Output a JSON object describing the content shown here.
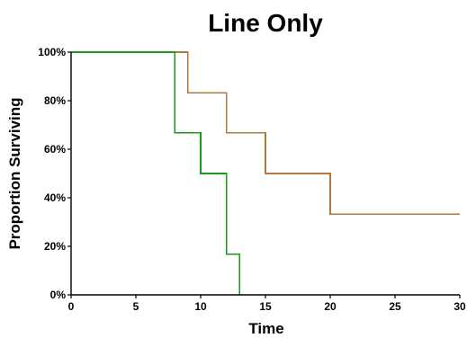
{
  "chart_data": {
    "type": "line",
    "step": true,
    "title": "Line Only",
    "xlabel": "Time",
    "ylabel": "Proportion Surviving",
    "xlim": [
      0,
      30
    ],
    "ylim": [
      0,
      1
    ],
    "x_ticks": [
      0,
      5,
      10,
      15,
      20,
      25,
      30
    ],
    "x_tick_labels": [
      "0",
      "5",
      "10",
      "15",
      "20",
      "25",
      "30"
    ],
    "y_ticks": [
      0,
      0.2,
      0.4,
      0.6,
      0.8,
      1.0
    ],
    "y_tick_labels": [
      "0%",
      "20%",
      "40%",
      "60%",
      "80%",
      "100%"
    ],
    "grid": false,
    "legend": "none",
    "series": [
      {
        "color": "#b07a3c",
        "x": [
          0,
          9,
          12,
          15,
          20,
          30
        ],
        "y": [
          1.0,
          0.833,
          0.667,
          0.5,
          0.333,
          0.333
        ]
      },
      {
        "color": "#1a9a1a",
        "x": [
          0,
          8,
          10,
          12,
          13
        ],
        "y": [
          1.0,
          0.667,
          0.5,
          0.167,
          0.0
        ]
      }
    ]
  }
}
